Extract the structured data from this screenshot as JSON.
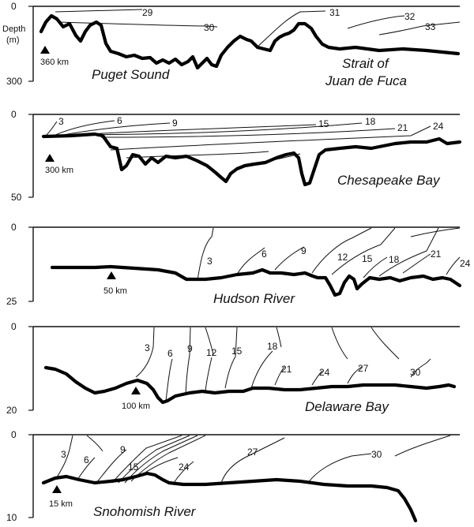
{
  "axis": {
    "depth_label_line1": "Depth",
    "depth_label_line2": "(m)"
  },
  "panels": [
    {
      "id": "puget",
      "names": [
        "Puget Sound",
        "Strait of",
        "Juan de Fuca"
      ],
      "depth_ticks": [
        "0",
        "300"
      ],
      "distance_marker": "360 km",
      "isohaline_labels": [
        "29",
        "30",
        "31",
        "32",
        "33"
      ]
    },
    {
      "id": "chesapeake",
      "names": [
        "Chesapeake Bay"
      ],
      "depth_ticks": [
        "0",
        "50"
      ],
      "distance_marker": "300 km",
      "isohaline_labels": [
        "3",
        "6",
        "9",
        "15",
        "18",
        "21",
        "24"
      ]
    },
    {
      "id": "hudson",
      "names": [
        "Hudson River"
      ],
      "depth_ticks": [
        "0",
        "25"
      ],
      "distance_marker": "50 km",
      "isohaline_labels": [
        "3",
        "6",
        "9",
        "12",
        "15",
        "18",
        "21",
        "24"
      ]
    },
    {
      "id": "delaware",
      "names": [
        "Delaware Bay"
      ],
      "depth_ticks": [
        "0",
        "20"
      ],
      "distance_marker": "100 km",
      "isohaline_labels": [
        "3",
        "6",
        "9",
        "12",
        "15",
        "18",
        "21",
        "24",
        "27",
        "30"
      ]
    },
    {
      "id": "snohomish",
      "names": [
        "Snohomish River"
      ],
      "depth_ticks": [
        "0",
        "10"
      ],
      "distance_marker": "15 km",
      "isohaline_labels": [
        "3",
        "6",
        "9",
        "15",
        "24",
        "27",
        "30"
      ]
    }
  ]
}
